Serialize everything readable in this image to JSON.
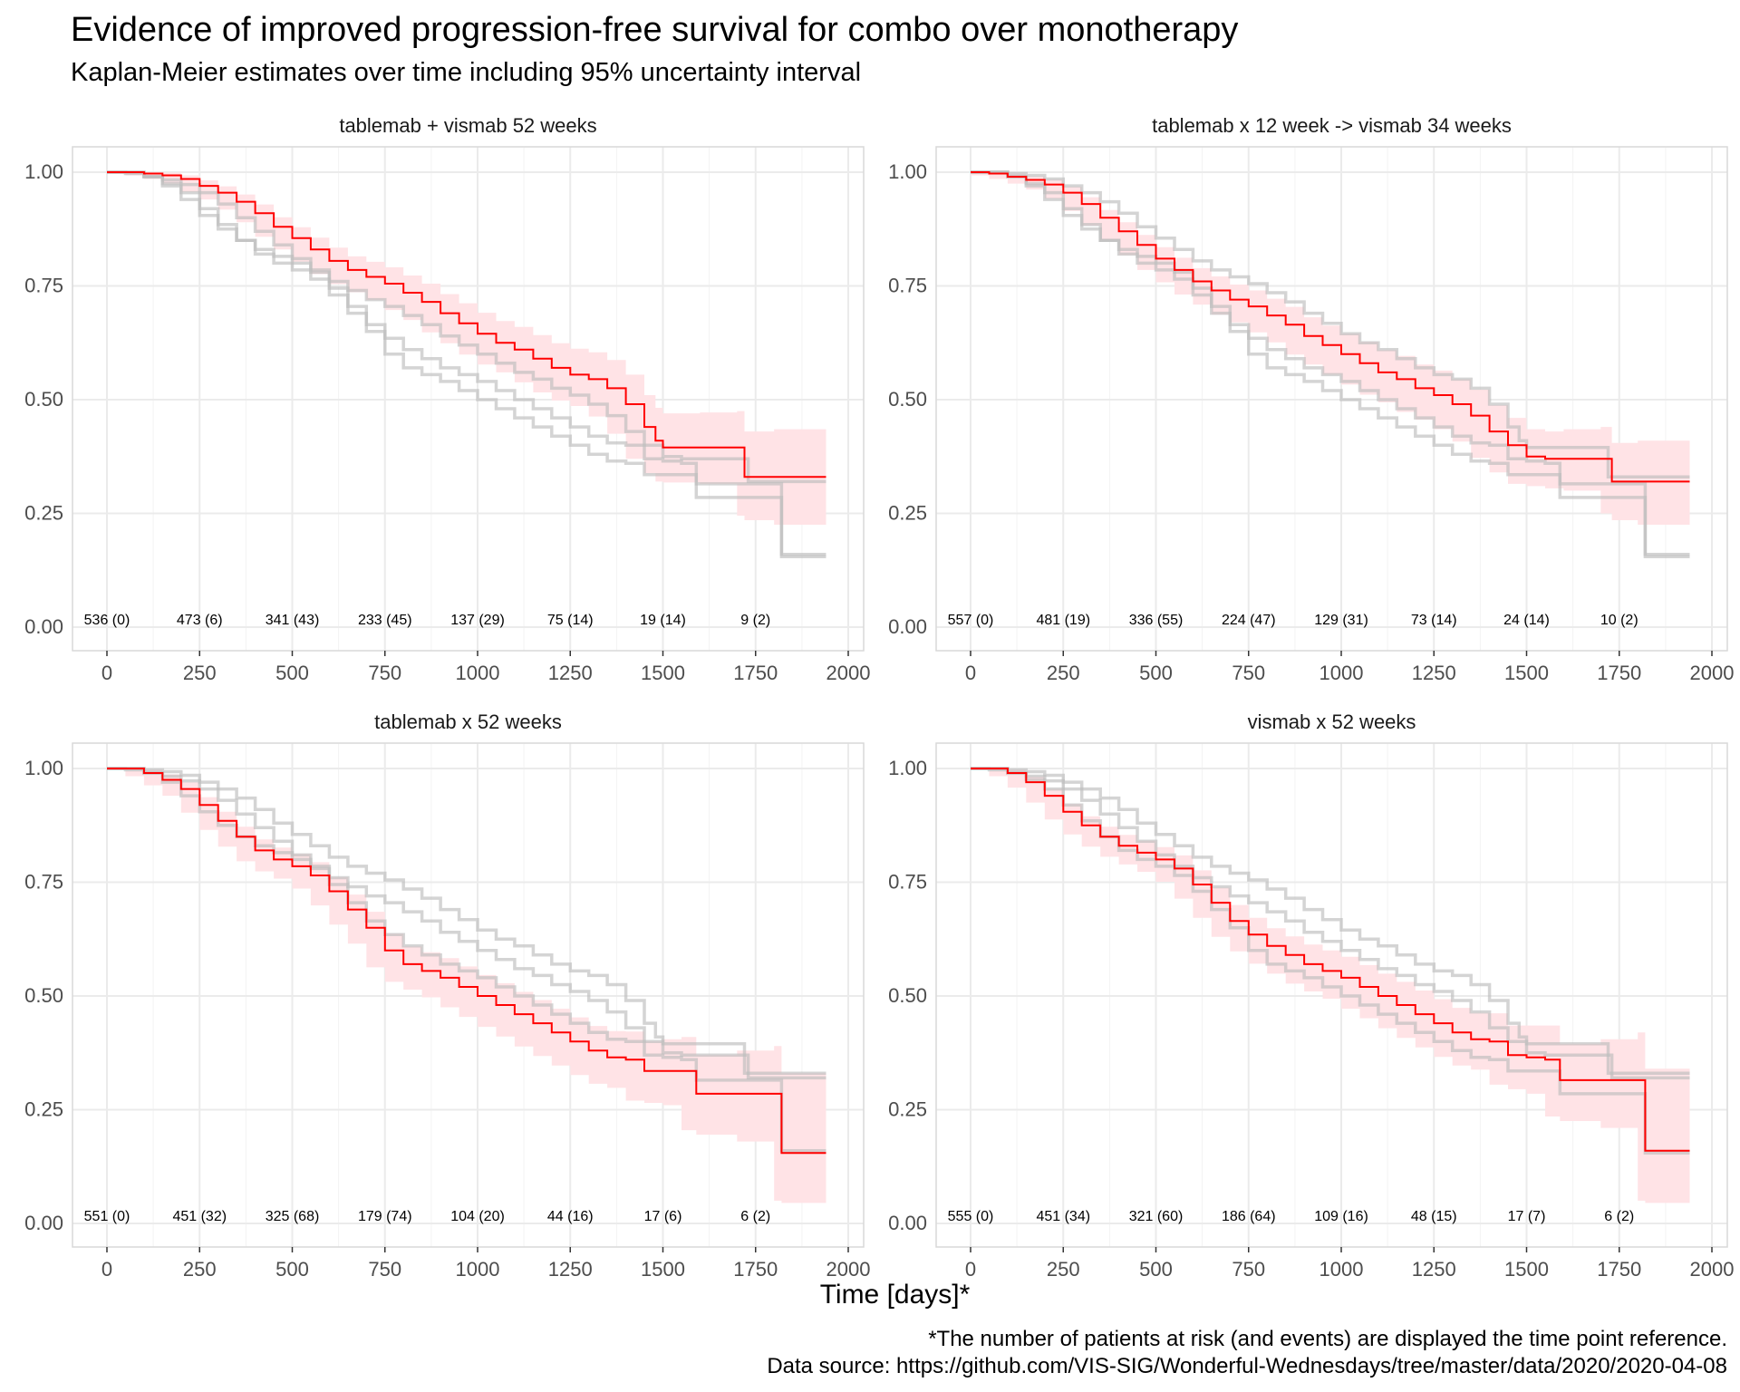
{
  "header": {
    "title": "Evidence of improved progression-free survival for combo over monotherapy",
    "subtitle": "Kaplan-Meier estimates over time including 95% uncertainty interval"
  },
  "xlabel": "Time [days]*",
  "footnotes": {
    "note": "*The number of patients at risk (and events) are displayed the time point reference.",
    "source": "Data source: https://github.com/VIS-SIG/Wonderful-Wednesdays/tree/master/data/2020/2020-04-08"
  },
  "colors": {
    "highlight": "#ff0000",
    "ribbon": "#ffe3e6",
    "background_curve": "#bdbdbd",
    "grid": "#ebebeb",
    "panel_border": "#d9d9d9"
  },
  "chart_data": {
    "type": "line",
    "layout": "facet-grid-2x2",
    "xlim": [
      0,
      2000
    ],
    "ylim": [
      0,
      1
    ],
    "x_ticks": [
      0,
      250,
      500,
      750,
      1000,
      1250,
      1500,
      1750,
      2000
    ],
    "y_ticks": [
      "0.00",
      "0.25",
      "0.50",
      "0.75",
      "1.00"
    ],
    "grid": true,
    "risk_times": [
      0,
      250,
      500,
      750,
      1000,
      1250,
      1500,
      1750
    ],
    "panels": [
      {
        "title": "tablemab + vismab 52 weeks",
        "curve_index": 0,
        "risk_labels": [
          "536 (0)",
          "473 (6)",
          "341 (43)",
          "233 (45)",
          "137 (29)",
          "75 (14)",
          "19 (14)",
          "9 (2)"
        ]
      },
      {
        "title": "tablemab x 12 week -> vismab 34 weeks",
        "curve_index": 1,
        "risk_labels": [
          "557 (0)",
          "481 (19)",
          "336 (55)",
          "224 (47)",
          "129 (31)",
          "73 (14)",
          "24 (14)",
          "10 (2)"
        ]
      },
      {
        "title": "tablemab x 52 weeks",
        "curve_index": 2,
        "risk_labels": [
          "551 (0)",
          "451 (32)",
          "325 (68)",
          "179 (74)",
          "104 (20)",
          "44 (16)",
          "17 (6)",
          "6 (2)"
        ]
      },
      {
        "title": "vismab x 52 weeks",
        "curve_index": 3,
        "risk_labels": [
          "555 (0)",
          "451 (34)",
          "321 (60)",
          "186 (64)",
          "109 (16)",
          "48 (15)",
          "17 (7)",
          "6 (2)"
        ]
      }
    ],
    "series": [
      {
        "points": [
          [
            0,
            1.0
          ],
          [
            50,
            1.0
          ],
          [
            100,
            0.997
          ],
          [
            150,
            0.993
          ],
          [
            200,
            0.985
          ],
          [
            250,
            0.97
          ],
          [
            300,
            0.955
          ],
          [
            350,
            0.935
          ],
          [
            400,
            0.91
          ],
          [
            450,
            0.88
          ],
          [
            500,
            0.855
          ],
          [
            550,
            0.83
          ],
          [
            600,
            0.805
          ],
          [
            650,
            0.785
          ],
          [
            700,
            0.77
          ],
          [
            750,
            0.755
          ],
          [
            800,
            0.735
          ],
          [
            850,
            0.715
          ],
          [
            900,
            0.69
          ],
          [
            950,
            0.668
          ],
          [
            1000,
            0.645
          ],
          [
            1050,
            0.625
          ],
          [
            1100,
            0.61
          ],
          [
            1150,
            0.59
          ],
          [
            1200,
            0.57
          ],
          [
            1250,
            0.555
          ],
          [
            1300,
            0.545
          ],
          [
            1350,
            0.525
          ],
          [
            1400,
            0.49
          ],
          [
            1450,
            0.44
          ],
          [
            1480,
            0.41
          ],
          [
            1500,
            0.395
          ],
          [
            1600,
            0.395
          ],
          [
            1700,
            0.395
          ],
          [
            1720,
            0.33
          ],
          [
            1800,
            0.33
          ],
          [
            1940,
            0.33
          ]
        ],
        "ci_lower": [
          1.0,
          1.0,
          0.993,
          0.985,
          0.975,
          0.957,
          0.94,
          0.918,
          0.89,
          0.858,
          0.83,
          0.803,
          0.776,
          0.754,
          0.736,
          0.719,
          0.697,
          0.675,
          0.648,
          0.624,
          0.599,
          0.577,
          0.56,
          0.538,
          0.516,
          0.498,
          0.486,
          0.463,
          0.425,
          0.37,
          0.338,
          0.32,
          0.318,
          0.315,
          0.245,
          0.235,
          0.225
        ],
        "ci_upper": [
          1.0,
          1.0,
          1.0,
          0.999,
          0.993,
          0.982,
          0.969,
          0.951,
          0.929,
          0.901,
          0.879,
          0.856,
          0.834,
          0.815,
          0.803,
          0.791,
          0.773,
          0.755,
          0.732,
          0.712,
          0.691,
          0.673,
          0.66,
          0.642,
          0.624,
          0.612,
          0.604,
          0.587,
          0.555,
          0.51,
          0.482,
          0.47,
          0.472,
          0.475,
          0.43,
          0.435,
          0.44
        ]
      },
      {
        "points": [
          [
            0,
            1.0
          ],
          [
            50,
            0.997
          ],
          [
            100,
            0.99
          ],
          [
            150,
            0.983
          ],
          [
            200,
            0.973
          ],
          [
            250,
            0.955
          ],
          [
            300,
            0.93
          ],
          [
            350,
            0.9
          ],
          [
            400,
            0.87
          ],
          [
            450,
            0.84
          ],
          [
            500,
            0.81
          ],
          [
            550,
            0.785
          ],
          [
            600,
            0.76
          ],
          [
            650,
            0.74
          ],
          [
            700,
            0.72
          ],
          [
            750,
            0.705
          ],
          [
            800,
            0.685
          ],
          [
            850,
            0.665
          ],
          [
            900,
            0.64
          ],
          [
            950,
            0.62
          ],
          [
            1000,
            0.6
          ],
          [
            1050,
            0.58
          ],
          [
            1100,
            0.56
          ],
          [
            1150,
            0.545
          ],
          [
            1200,
            0.525
          ],
          [
            1250,
            0.51
          ],
          [
            1300,
            0.49
          ],
          [
            1350,
            0.465
          ],
          [
            1400,
            0.43
          ],
          [
            1450,
            0.4
          ],
          [
            1500,
            0.375
          ],
          [
            1550,
            0.37
          ],
          [
            1600,
            0.37
          ],
          [
            1700,
            0.37
          ],
          [
            1730,
            0.32
          ],
          [
            1800,
            0.32
          ],
          [
            1940,
            0.32
          ]
        ],
        "ci_lower": [
          1.0,
          0.993,
          0.985,
          0.975,
          0.962,
          0.942,
          0.915,
          0.883,
          0.85,
          0.818,
          0.785,
          0.758,
          0.731,
          0.709,
          0.687,
          0.67,
          0.648,
          0.626,
          0.599,
          0.577,
          0.555,
          0.533,
          0.511,
          0.494,
          0.473,
          0.456,
          0.435,
          0.408,
          0.372,
          0.34,
          0.315,
          0.31,
          0.305,
          0.3,
          0.25,
          0.235,
          0.225
        ],
        "ci_upper": [
          1.0,
          1.0,
          0.997,
          0.991,
          0.984,
          0.968,
          0.945,
          0.917,
          0.89,
          0.862,
          0.835,
          0.812,
          0.789,
          0.771,
          0.753,
          0.74,
          0.722,
          0.704,
          0.681,
          0.663,
          0.645,
          0.627,
          0.609,
          0.596,
          0.577,
          0.564,
          0.545,
          0.522,
          0.488,
          0.46,
          0.435,
          0.43,
          0.435,
          0.44,
          0.405,
          0.41,
          0.415
        ]
      },
      {
        "points": [
          [
            0,
            1.0
          ],
          [
            50,
            1.0
          ],
          [
            100,
            0.99
          ],
          [
            150,
            0.975
          ],
          [
            200,
            0.955
          ],
          [
            250,
            0.92
          ],
          [
            300,
            0.885
          ],
          [
            350,
            0.85
          ],
          [
            400,
            0.82
          ],
          [
            450,
            0.8
          ],
          [
            500,
            0.785
          ],
          [
            550,
            0.765
          ],
          [
            600,
            0.73
          ],
          [
            650,
            0.69
          ],
          [
            700,
            0.65
          ],
          [
            750,
            0.6
          ],
          [
            800,
            0.57
          ],
          [
            850,
            0.555
          ],
          [
            900,
            0.54
          ],
          [
            950,
            0.52
          ],
          [
            1000,
            0.5
          ],
          [
            1050,
            0.48
          ],
          [
            1100,
            0.46
          ],
          [
            1150,
            0.44
          ],
          [
            1200,
            0.42
          ],
          [
            1250,
            0.4
          ],
          [
            1300,
            0.38
          ],
          [
            1350,
            0.365
          ],
          [
            1400,
            0.36
          ],
          [
            1450,
            0.335
          ],
          [
            1500,
            0.335
          ],
          [
            1550,
            0.335
          ],
          [
            1590,
            0.285
          ],
          [
            1700,
            0.285
          ],
          [
            1800,
            0.285
          ],
          [
            1820,
            0.155
          ],
          [
            1940,
            0.155
          ]
        ],
        "ci_lower": [
          1.0,
          1.0,
          0.983,
          0.963,
          0.94,
          0.903,
          0.865,
          0.828,
          0.796,
          0.774,
          0.758,
          0.736,
          0.699,
          0.657,
          0.615,
          0.563,
          0.531,
          0.514,
          0.497,
          0.475,
          0.454,
          0.432,
          0.411,
          0.389,
          0.368,
          0.347,
          0.326,
          0.307,
          0.298,
          0.27,
          0.265,
          0.26,
          0.205,
          0.195,
          0.18,
          0.05,
          0.045
        ],
        "ci_upper": [
          1.0,
          1.0,
          0.997,
          0.987,
          0.97,
          0.937,
          0.905,
          0.872,
          0.844,
          0.826,
          0.812,
          0.794,
          0.761,
          0.723,
          0.685,
          0.637,
          0.609,
          0.596,
          0.583,
          0.565,
          0.546,
          0.528,
          0.509,
          0.491,
          0.472,
          0.453,
          0.434,
          0.423,
          0.422,
          0.4,
          0.405,
          0.41,
          0.37,
          0.38,
          0.39,
          0.33,
          0.335
        ]
      },
      {
        "points": [
          [
            0,
            1.0
          ],
          [
            50,
            1.0
          ],
          [
            100,
            0.99
          ],
          [
            150,
            0.97
          ],
          [
            200,
            0.94
          ],
          [
            250,
            0.905
          ],
          [
            300,
            0.875
          ],
          [
            350,
            0.85
          ],
          [
            400,
            0.83
          ],
          [
            450,
            0.815
          ],
          [
            500,
            0.8
          ],
          [
            550,
            0.78
          ],
          [
            600,
            0.745
          ],
          [
            650,
            0.705
          ],
          [
            700,
            0.665
          ],
          [
            750,
            0.635
          ],
          [
            800,
            0.61
          ],
          [
            850,
            0.59
          ],
          [
            900,
            0.57
          ],
          [
            950,
            0.555
          ],
          [
            1000,
            0.54
          ],
          [
            1050,
            0.52
          ],
          [
            1100,
            0.5
          ],
          [
            1150,
            0.48
          ],
          [
            1200,
            0.46
          ],
          [
            1250,
            0.44
          ],
          [
            1300,
            0.42
          ],
          [
            1350,
            0.405
          ],
          [
            1400,
            0.4
          ],
          [
            1450,
            0.37
          ],
          [
            1500,
            0.365
          ],
          [
            1550,
            0.36
          ],
          [
            1590,
            0.315
          ],
          [
            1700,
            0.315
          ],
          [
            1800,
            0.315
          ],
          [
            1820,
            0.16
          ],
          [
            1940,
            0.16
          ]
        ],
        "ci_lower": [
          1.0,
          1.0,
          0.983,
          0.958,
          0.925,
          0.888,
          0.855,
          0.828,
          0.806,
          0.789,
          0.773,
          0.751,
          0.714,
          0.672,
          0.63,
          0.598,
          0.571,
          0.549,
          0.527,
          0.51,
          0.494,
          0.472,
          0.451,
          0.429,
          0.408,
          0.387,
          0.366,
          0.347,
          0.338,
          0.305,
          0.295,
          0.285,
          0.235,
          0.225,
          0.21,
          0.05,
          0.045
        ],
        "ci_upper": [
          1.0,
          1.0,
          0.997,
          0.982,
          0.955,
          0.922,
          0.895,
          0.872,
          0.854,
          0.841,
          0.827,
          0.809,
          0.776,
          0.738,
          0.7,
          0.672,
          0.649,
          0.631,
          0.613,
          0.6,
          0.586,
          0.568,
          0.549,
          0.531,
          0.512,
          0.493,
          0.474,
          0.463,
          0.462,
          0.435,
          0.435,
          0.435,
          0.395,
          0.405,
          0.42,
          0.34,
          0.345
        ]
      }
    ]
  }
}
